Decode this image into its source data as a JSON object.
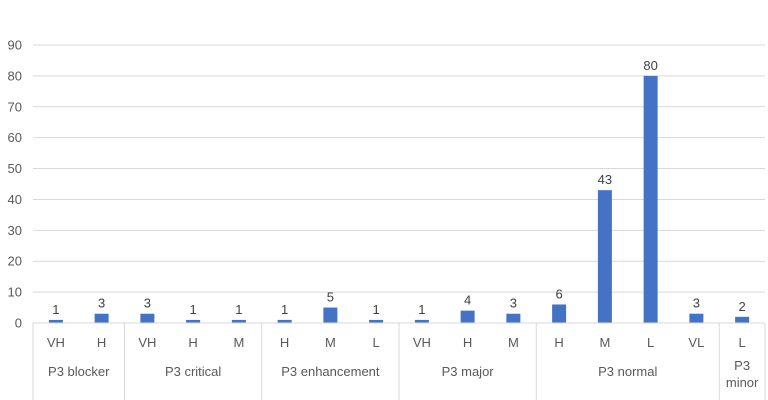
{
  "chart_data": {
    "type": "bar",
    "title": "",
    "xlabel": "",
    "ylabel": "",
    "ylim": [
      0,
      90
    ],
    "yticks": [
      0,
      10,
      20,
      30,
      40,
      50,
      60,
      70,
      80,
      90
    ],
    "grid": true,
    "legend": "none",
    "bar_color": "#4472C4",
    "groups": [
      {
        "name": "P3 blocker",
        "categories": [
          "VH",
          "H"
        ],
        "values": [
          1,
          3
        ]
      },
      {
        "name": "P3 critical",
        "categories": [
          "VH",
          "H",
          "M"
        ],
        "values": [
          3,
          1,
          1
        ]
      },
      {
        "name": "P3 enhancement",
        "categories": [
          "H",
          "M",
          "L"
        ],
        "values": [
          1,
          5,
          1
        ]
      },
      {
        "name": "P3 major",
        "categories": [
          "VH",
          "H",
          "M"
        ],
        "values": [
          1,
          4,
          3
        ]
      },
      {
        "name": "P3 normal",
        "categories": [
          "H",
          "M",
          "L",
          "VL"
        ],
        "values": [
          6,
          43,
          80,
          3
        ]
      },
      {
        "name": "P3 minor",
        "categories": [
          "L"
        ],
        "values": [
          2
        ]
      }
    ]
  }
}
